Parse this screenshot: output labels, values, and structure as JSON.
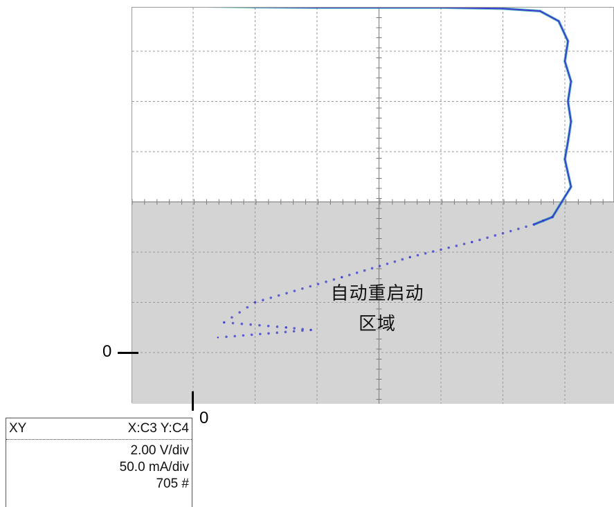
{
  "chart_data": {
    "type": "scatter",
    "mode": "XY",
    "x_source": "C3",
    "y_source": "C4",
    "x_scale": "2.00 V/div",
    "y_scale": "50.0 mA/div",
    "acquisitions": "705 #",
    "x_divisions": 8,
    "y_divisions": 8,
    "x_unit": "V",
    "y_unit": "mA",
    "x_per_div": 2.0,
    "y_per_div": 50.0,
    "xlim": [
      -1,
      7
    ],
    "ylim": [
      -0.1,
      7.9
    ],
    "grid": true,
    "shaded_region": {
      "y_from": -0.1,
      "y_to": 3.0
    },
    "series": [
      {
        "values": [
          {
            "x": 0.0,
            "y": 6.9
          },
          {
            "x": 1.0,
            "y": 6.88
          },
          {
            "x": 2.0,
            "y": 6.87
          },
          {
            "x": 3.0,
            "y": 6.87
          },
          {
            "x": 4.0,
            "y": 6.87
          },
          {
            "x": 5.0,
            "y": 6.85
          },
          {
            "x": 5.6,
            "y": 6.8
          },
          {
            "x": 5.9,
            "y": 6.6
          },
          {
            "x": 6.05,
            "y": 6.2
          },
          {
            "x": 6.0,
            "y": 5.8
          },
          {
            "x": 6.1,
            "y": 5.4
          },
          {
            "x": 6.05,
            "y": 5.0
          },
          {
            "x": 6.1,
            "y": 4.6
          },
          {
            "x": 6.05,
            "y": 4.2
          },
          {
            "x": 6.0,
            "y": 3.85
          },
          {
            "x": 6.1,
            "y": 3.3
          },
          {
            "x": 5.95,
            "y": 3.0
          },
          {
            "x": 5.8,
            "y": 2.7
          },
          {
            "x": 5.5,
            "y": 2.55
          },
          {
            "x": 4.5,
            "y": 2.2
          },
          {
            "x": 3.5,
            "y": 1.9
          },
          {
            "x": 2.4,
            "y": 1.5
          },
          {
            "x": 1.0,
            "y": 1.0
          },
          {
            "x": 0.5,
            "y": 0.6
          },
          {
            "x": 1.5,
            "y": 0.5
          },
          {
            "x": 1.9,
            "y": 0.45
          },
          {
            "x": 0.4,
            "y": 0.3
          }
        ]
      }
    ],
    "annotations": [
      {
        "text": "自动重启动",
        "line": 1
      },
      {
        "text": "区域",
        "line": 2
      }
    ],
    "origin_labels": {
      "x": "0",
      "y": "0"
    }
  },
  "readout": {
    "mode": "XY",
    "sources": "X:C3 Y:C4",
    "x_scale": "2.00 V/div",
    "y_scale": "50.0 mA/div",
    "count": "705 #"
  },
  "colors": {
    "trace": "#3a3ad0",
    "trace_alt": "#2aa8a8",
    "grid": "#9a9a9a",
    "shade": "#d4d4d4",
    "axis": "#7a7a7a"
  }
}
